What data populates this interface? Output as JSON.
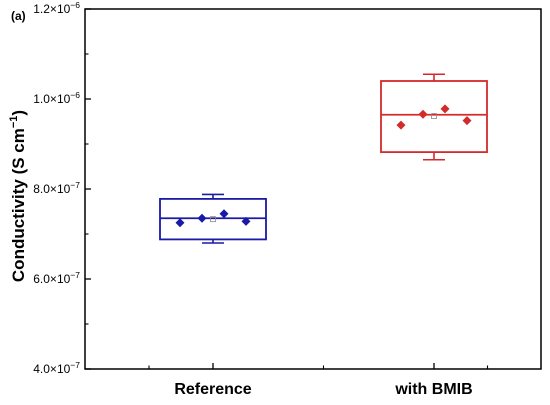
{
  "panel_label": "(a)",
  "chart_data": {
    "type": "box",
    "ylabel_main": "Conductivity (S cm",
    "ylabel_sup": "−1",
    "ylabel_close": ")",
    "ylim": [
      4e-07,
      1.2e-06
    ],
    "yticks": [
      {
        "value": 4e-07,
        "mantissa": "4.0×10",
        "exp": "−7"
      },
      {
        "value": 6e-07,
        "mantissa": "6.0×10",
        "exp": "−7"
      },
      {
        "value": 8e-07,
        "mantissa": "8.0×10",
        "exp": "−7"
      },
      {
        "value": 1e-06,
        "mantissa": "1.0×10",
        "exp": "−6"
      },
      {
        "value": 1.2e-06,
        "mantissa": "1.2×10",
        "exp": "−6"
      }
    ],
    "categories": [
      "Reference",
      "with BMIB"
    ],
    "colors": [
      "#1a1aa6",
      "#d42a2a"
    ],
    "boxes": [
      {
        "whisker_low": 6.8e-07,
        "q1": 6.88e-07,
        "median": 7.35e-07,
        "mean": 7.33e-07,
        "q3": 7.78e-07,
        "whisker_high": 7.88e-07,
        "points": [
          7.25e-07,
          7.35e-07,
          7.45e-07,
          7.28e-07
        ]
      },
      {
        "whisker_low": 8.65e-07,
        "q1": 8.82e-07,
        "median": 9.65e-07,
        "mean": 9.62e-07,
        "q3": 1.04e-06,
        "whisker_high": 1.055e-06,
        "points": [
          9.42e-07,
          9.66e-07,
          9.78e-07,
          9.52e-07
        ]
      }
    ],
    "grid": false
  }
}
